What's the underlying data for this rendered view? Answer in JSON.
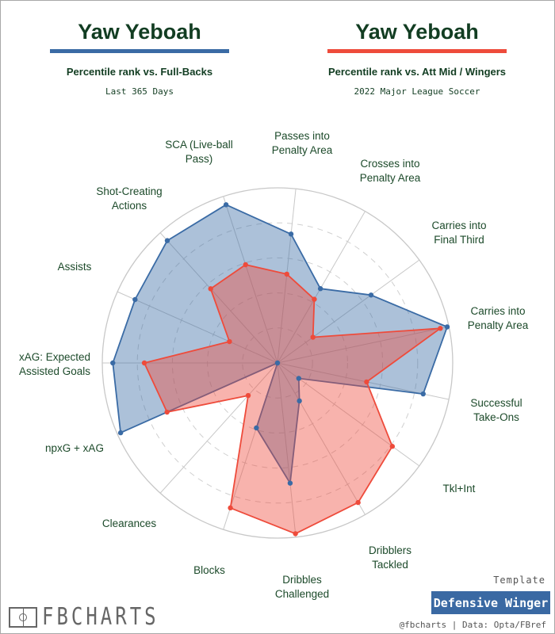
{
  "header": {
    "left": {
      "name": "Yaw Yeboah",
      "subtitle": "Percentile rank vs. Full-Backs",
      "period": "Last 365 Days",
      "color": "#3a6ba5"
    },
    "right": {
      "name": "Yaw Yeboah",
      "subtitle": "Percentile rank vs. Att Mid / Wingers",
      "period": "2022 Major League Soccer",
      "color": "#ee4b3b"
    }
  },
  "chart_data": {
    "type": "radar",
    "range": [
      0,
      100
    ],
    "grid": true,
    "categories": [
      "Passes into Penalty Area",
      "Crosses into Penalty Area",
      "Carries into Final Third",
      "Carries into Penalty Area",
      "Successful Take-Ons",
      "Tkl+Int",
      "Dribblers Tackled",
      "Dribbles Challenged",
      "Blocks",
      "Clearances",
      "npxG + xAG",
      "xAG: Expected Assisted Goals",
      "Assists",
      "Shot-Creating Actions",
      "SCA (Live-ball Pass)"
    ],
    "label_lines": [
      [
        "Passes into",
        "Penalty Area"
      ],
      [
        "Crosses into",
        "Penalty Area"
      ],
      [
        "Carries into",
        "Final Third"
      ],
      [
        "Carries into",
        "Penalty Area"
      ],
      [
        "Successful",
        "Take-Ons"
      ],
      [
        "Tkl+Int"
      ],
      [
        "Dribblers",
        "Tackled"
      ],
      [
        "Dribbles",
        "Challenged"
      ],
      [
        "Blocks"
      ],
      [
        "Clearances"
      ],
      [
        "npxG + xAG"
      ],
      [
        "xAG: Expected",
        "Assisted Goals"
      ],
      [
        "Assists"
      ],
      [
        "Shot-Creating",
        "Actions"
      ],
      [
        "SCA (Live-ball",
        "Pass)"
      ]
    ],
    "series": [
      {
        "color": "#3a6ba5",
        "values": [
          74,
          49,
          66,
          99,
          85,
          15,
          25,
          69,
          39,
          0,
          98,
          94,
          89,
          94,
          95
        ]
      },
      {
        "color": "#ee4b3b",
        "values": [
          51,
          42,
          25,
          95,
          52,
          81,
          92,
          98,
          87,
          25,
          69,
          76,
          30,
          57,
          59
        ]
      }
    ]
  },
  "footer": {
    "logo": "FBCHARTS",
    "template_label": "Template",
    "template_name": "Defensive Winger",
    "credit": "@fbcharts | Data: Opta/FBref"
  }
}
